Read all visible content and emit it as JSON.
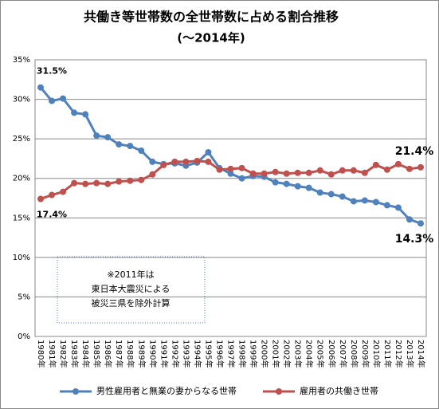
{
  "chart_data": {
    "type": "line",
    "title": "共働き等世帯数の全世帯数に占める割合推移",
    "subtitle": "(～2014年)",
    "categories": [
      "1980年",
      "1981年",
      "1982年",
      "1983年",
      "1984年",
      "1985年",
      "1986年",
      "1987年",
      "1988年",
      "1989年",
      "1990年",
      "1991年",
      "1992年",
      "1993年",
      "1994年",
      "1995年",
      "1996年",
      "1997年",
      "1998年",
      "1999年",
      "2000年",
      "2001年",
      "2002年",
      "2003年",
      "2004年",
      "2005年",
      "2006年",
      "2007年",
      "2008年",
      "2009年",
      "2010年",
      "2011年",
      "2012年",
      "2013年",
      "2014年"
    ],
    "series": [
      {
        "name": "男性雇用者と無業の妻からなる世帯",
        "color": "#4f81bd",
        "values": [
          31.5,
          29.8,
          30.1,
          28.3,
          28.1,
          25.4,
          25.2,
          24.3,
          24.1,
          23.5,
          22.1,
          21.8,
          21.9,
          21.6,
          22.0,
          23.3,
          21.3,
          20.6,
          20.0,
          20.3,
          20.2,
          19.5,
          19.3,
          19.0,
          18.8,
          18.2,
          18.0,
          17.7,
          17.1,
          17.2,
          17.0,
          16.6,
          16.3,
          14.8,
          14.3
        ],
        "value_labels": [
          "31.5%",
          null,
          null,
          null,
          null,
          null,
          null,
          null,
          null,
          null,
          null,
          null,
          null,
          null,
          null,
          null,
          null,
          null,
          null,
          null,
          null,
          null,
          null,
          null,
          null,
          null,
          null,
          null,
          null,
          null,
          null,
          null,
          null,
          null,
          "14.3%"
        ]
      },
      {
        "name": "雇用者の共働き世帯",
        "color": "#c0504d",
        "values": [
          17.4,
          17.9,
          18.3,
          19.4,
          19.3,
          19.4,
          19.3,
          19.6,
          19.7,
          19.8,
          20.5,
          21.7,
          22.1,
          22.1,
          22.2,
          22.1,
          21.1,
          21.2,
          21.3,
          20.6,
          20.6,
          20.8,
          20.6,
          20.7,
          20.7,
          21.0,
          20.5,
          21.0,
          21.0,
          20.7,
          21.7,
          21.1,
          21.8,
          21.2,
          21.4
        ],
        "value_labels": [
          "17.4%",
          null,
          null,
          null,
          null,
          null,
          null,
          null,
          null,
          null,
          null,
          null,
          null,
          null,
          null,
          null,
          null,
          null,
          null,
          null,
          null,
          null,
          null,
          null,
          null,
          null,
          null,
          null,
          null,
          null,
          null,
          null,
          null,
          null,
          "21.4%"
        ]
      }
    ],
    "ylim": [
      0,
      35
    ],
    "yticks": [
      {
        "value": 0,
        "label": "0%"
      },
      {
        "value": 5,
        "label": "5%"
      },
      {
        "value": 10,
        "label": "10%"
      },
      {
        "value": 15,
        "label": "15%"
      },
      {
        "value": 20,
        "label": "20%"
      },
      {
        "value": 25,
        "label": "25%"
      },
      {
        "value": 30,
        "label": "30%"
      },
      {
        "value": 35,
        "label": "35%"
      }
    ],
    "grid": true,
    "legend": "bottom",
    "annotation": [
      "※2011年は",
      "東日本大震災による",
      "被災三県を除外計算"
    ]
  }
}
